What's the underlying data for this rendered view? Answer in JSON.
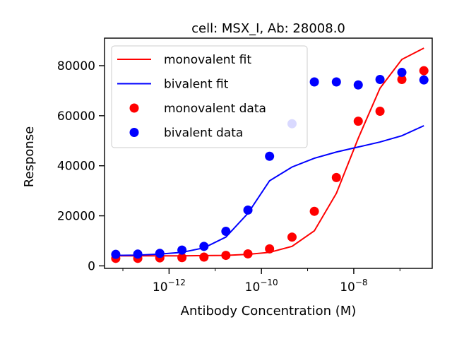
{
  "chart_data": {
    "type": "scatter",
    "title": "cell: MSX_I, Ab: 28008.0",
    "xlabel": "Antibody Concentration (M)",
    "ylabel": "Response",
    "xscale": "log",
    "xlim": [
      4e-14,
      5e-07
    ],
    "ylim": [
      -1000,
      91000
    ],
    "x_ticks": [
      {
        "value": 1e-12,
        "base": "10",
        "exp": "−12"
      },
      {
        "value": 1e-10,
        "base": "10",
        "exp": "−10"
      },
      {
        "value": 1e-08,
        "base": "10",
        "exp": "−8"
      }
    ],
    "y_ticks": [
      {
        "value": 0,
        "label": "0"
      },
      {
        "value": 20000,
        "label": "20000"
      },
      {
        "value": 40000,
        "label": "40000"
      },
      {
        "value": 60000,
        "label": "60000"
      },
      {
        "value": 80000,
        "label": "80000"
      }
    ],
    "legend_position": "upper-left",
    "series": [
      {
        "name": "monovalent fit",
        "kind": "line",
        "color": "#ff0000",
        "x": [
          7e-14,
          2.1e-13,
          6.3e-13,
          1.9e-12,
          5.7e-12,
          1.7e-11,
          5.1e-11,
          1.5e-10,
          4.6e-10,
          1.4e-09,
          4.2e-09,
          1.25e-08,
          3.7e-08,
          1.1e-07,
          3.3e-07
        ],
        "y": [
          4000,
          4000,
          4000,
          4000,
          4100,
          4200,
          4600,
          5400,
          7800,
          14000,
          29000,
          51000,
          71000,
          82500,
          87000
        ]
      },
      {
        "name": "bivalent fit",
        "kind": "line",
        "color": "#0000ff",
        "x": [
          7e-14,
          2.1e-13,
          6.3e-13,
          1.9e-12,
          5.7e-12,
          1.7e-11,
          5.1e-11,
          1.5e-10,
          4.6e-10,
          1.4e-09,
          4.2e-09,
          1.25e-08,
          3.7e-08,
          1.1e-07,
          3.3e-07
        ],
        "y": [
          4200,
          4300,
          4700,
          5400,
          7200,
          11500,
          21000,
          34000,
          39500,
          43000,
          45500,
          47500,
          49500,
          52000,
          56000
        ]
      },
      {
        "name": "monovalent data",
        "kind": "scatter",
        "color": "#ff0000",
        "x": [
          7e-14,
          2.1e-13,
          6.3e-13,
          1.9e-12,
          5.7e-12,
          1.7e-11,
          5.1e-11,
          1.5e-10,
          4.6e-10,
          1.4e-09,
          4.2e-09,
          1.25e-08,
          3.7e-08,
          1.1e-07,
          3.3e-07
        ],
        "y": [
          3000,
          3000,
          3200,
          3300,
          3500,
          4200,
          4800,
          6800,
          11500,
          21800,
          35300,
          57800,
          61800,
          74500,
          78000
        ]
      },
      {
        "name": "bivalent data",
        "kind": "scatter",
        "color": "#0000ff",
        "x": [
          7e-14,
          2.1e-13,
          6.3e-13,
          1.9e-12,
          5.7e-12,
          1.7e-11,
          5.1e-11,
          1.5e-10,
          4.6e-10,
          1.4e-09,
          4.2e-09,
          1.25e-08,
          3.7e-08,
          1.1e-07,
          3.3e-07
        ],
        "y": [
          4600,
          4700,
          5000,
          6300,
          7800,
          13800,
          22300,
          43800,
          56800,
          73500,
          73500,
          72300,
          74500,
          77300,
          74300
        ]
      }
    ]
  }
}
